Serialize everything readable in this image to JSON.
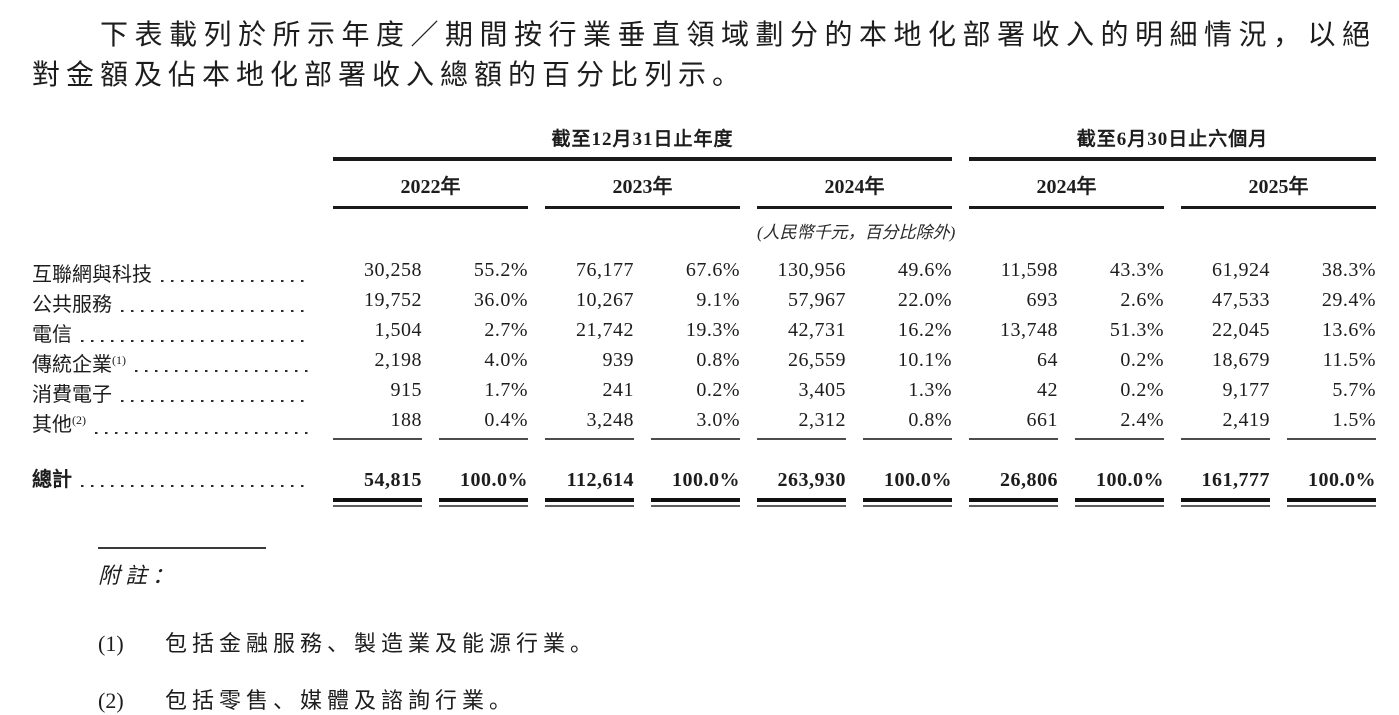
{
  "intro": {
    "text": "下表載列於所示年度／期間按行業垂直領域劃分的本地化部署收入的明細情況，以絕對金額及佔本地化部署收入總額的百分比列示。"
  },
  "table": {
    "group_headers": [
      {
        "label": "截至12月31日止年度"
      },
      {
        "label": "截至6月30日止六個月"
      }
    ],
    "year_headers": [
      "2022年",
      "2023年",
      "2024年",
      "2024年",
      "2025年"
    ],
    "unit_note": "(人民幣千元，百分比除外)",
    "rows": [
      {
        "label": "互聯網與科技",
        "sup": "",
        "values": [
          "30,258",
          "55.2%",
          "76,177",
          "67.6%",
          "130,956",
          "49.6%",
          "11,598",
          "43.3%",
          "61,924",
          "38.3%"
        ]
      },
      {
        "label": "公共服務",
        "sup": "",
        "values": [
          "19,752",
          "36.0%",
          "10,267",
          "9.1%",
          "57,967",
          "22.0%",
          "693",
          "2.6%",
          "47,533",
          "29.4%"
        ]
      },
      {
        "label": "電信",
        "sup": "",
        "values": [
          "1,504",
          "2.7%",
          "21,742",
          "19.3%",
          "42,731",
          "16.2%",
          "13,748",
          "51.3%",
          "22,045",
          "13.6%"
        ]
      },
      {
        "label": "傳統企業",
        "sup": "(1)",
        "values": [
          "2,198",
          "4.0%",
          "939",
          "0.8%",
          "26,559",
          "10.1%",
          "64",
          "0.2%",
          "18,679",
          "11.5%"
        ]
      },
      {
        "label": "消費電子",
        "sup": "",
        "values": [
          "915",
          "1.7%",
          "241",
          "0.2%",
          "3,405",
          "1.3%",
          "42",
          "0.2%",
          "9,177",
          "5.7%"
        ]
      },
      {
        "label": "其他",
        "sup": "(2)",
        "values": [
          "188",
          "0.4%",
          "3,248",
          "3.0%",
          "2,312",
          "0.8%",
          "661",
          "2.4%",
          "2,419",
          "1.5%"
        ]
      }
    ],
    "total": {
      "label": "總計",
      "values": [
        "54,815",
        "100.0%",
        "112,614",
        "100.0%",
        "263,930",
        "100.0%",
        "26,806",
        "100.0%",
        "161,777",
        "100.0%"
      ]
    }
  },
  "notes": {
    "heading": "附註：",
    "items": [
      {
        "num": "(1)",
        "text": "包括金融服務、製造業及能源行業。"
      },
      {
        "num": "(2)",
        "text": "包括零售、媒體及諮詢行業。"
      }
    ]
  }
}
